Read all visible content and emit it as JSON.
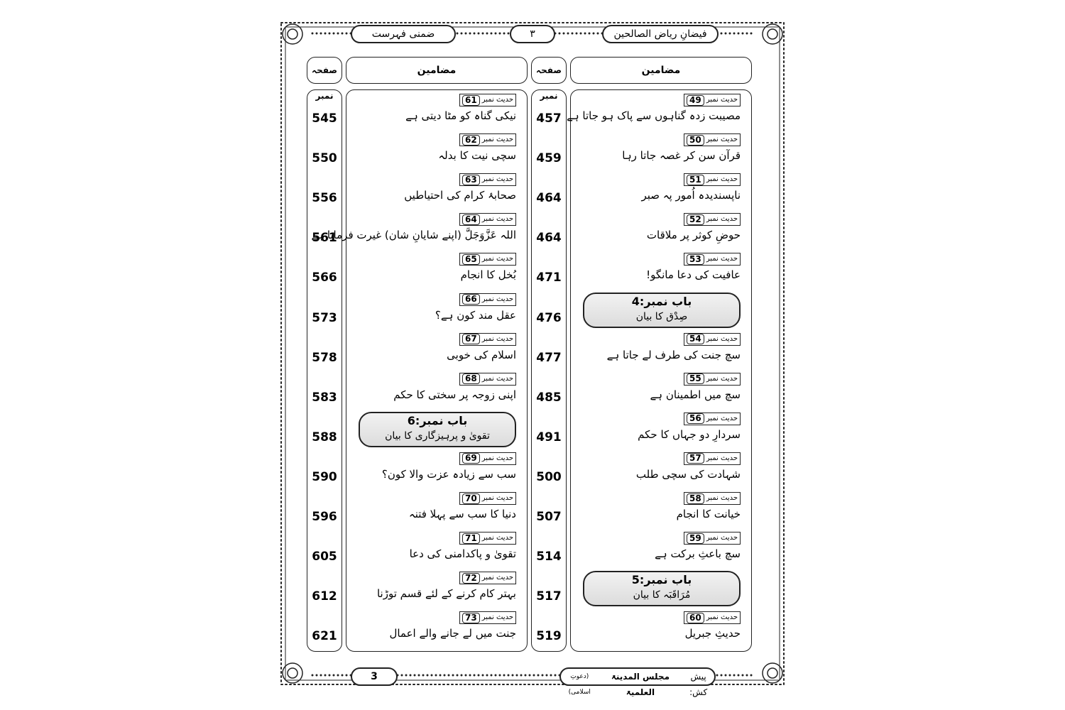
{
  "header": {
    "right_title": "فیضانِ ریاض الصالحین",
    "page_number_urdu": "۳",
    "left_title": "ضمنی فہرست"
  },
  "labels": {
    "topics": "مضامین",
    "page_no": "صفحہ نمبر",
    "hadith": "حدیث نمبر",
    "chapter": "باب نمبر:"
  },
  "right_column": {
    "entries": [
      {
        "hadith": 49,
        "title": "مصیبت زدہ گناہوں سے پاک ہو جاتا ہے",
        "page": 457
      },
      {
        "hadith": 50,
        "title": "قرآن سن کر غصہ جاتا رہا",
        "page": 459
      },
      {
        "hadith": 51,
        "title": "ناپسندیدہ اُمور پہ صبر",
        "page": 464
      },
      {
        "hadith": 52,
        "title": "حوضِ کوثر پر ملاقات",
        "page": 464
      },
      {
        "hadith": 53,
        "title": "عافیت کی دعا مانگو!",
        "page": 471
      },
      {
        "chapter": 4,
        "title": "صِدْق کا بیان",
        "page": 476
      },
      {
        "hadith": 54,
        "title": "سچ جنت کی طرف لے جاتا ہے",
        "page": 477
      },
      {
        "hadith": 55,
        "title": "سچ میں اطمینان ہے",
        "page": 485
      },
      {
        "hadith": 56,
        "title": "سردارِ دو جہاں کا حکم",
        "page": 491
      },
      {
        "hadith": 57,
        "title": "شہادت کی سچی طلب",
        "page": 500
      },
      {
        "hadith": 58,
        "title": "خیانت کا انجام",
        "page": 507
      },
      {
        "hadith": 59,
        "title": "سچ باعثِ برکت ہے",
        "page": 514
      },
      {
        "chapter": 5,
        "title": "مُرَاقَبَہ کا بیان",
        "page": 517
      },
      {
        "hadith": 60,
        "title": "حدیثِ جبریل",
        "page": 519
      }
    ]
  },
  "left_column": {
    "entries": [
      {
        "hadith": 61,
        "title": "نیکی گناہ کو مٹا دیتی ہے",
        "page": 545
      },
      {
        "hadith": 62,
        "title": "سچی نیت کا بدلہ",
        "page": 550
      },
      {
        "hadith": 63,
        "title": "صحابۂ کرام کی احتیاطیں",
        "page": 556
      },
      {
        "hadith": 64,
        "title": "اللہ عَزَّوَجَلَّ (اپنے شایانِ شان) غیرت فرماتا ہے",
        "page": 561
      },
      {
        "hadith": 65,
        "title": "بُخل کا انجام",
        "page": 566
      },
      {
        "hadith": 66,
        "title": "عقل مند کون ہے؟",
        "page": 573
      },
      {
        "hadith": 67,
        "title": "اسلام کی خوبی",
        "page": 578
      },
      {
        "hadith": 68,
        "title": "اپنی زوجہ پر سختی کا حکم",
        "page": 583
      },
      {
        "chapter": 6,
        "title": "تقویٰ و پرہیزگاری کا بیان",
        "page": 588
      },
      {
        "hadith": 69,
        "title": "سب سے زیادہ عزت والا کون؟",
        "page": 590
      },
      {
        "hadith": 70,
        "title": "دنیا کا سب سے پہلا فتنہ",
        "page": 596
      },
      {
        "hadith": 71,
        "title": "تقویٰ و پاکدامنی کی دعا",
        "page": 605
      },
      {
        "hadith": 72,
        "title": "بہتر کام کرنے کے لئے قسم توڑنا",
        "page": 612
      },
      {
        "hadith": 73,
        "title": "جنت میں لے جانے والے اعمال",
        "page": 621
      }
    ]
  },
  "footer": {
    "page_number": 3,
    "presented_by": "پیش کش:",
    "publisher": "مجلس المدینۃ العلمیۃ",
    "publisher_note": "(دعوتِ اسلامی)"
  }
}
